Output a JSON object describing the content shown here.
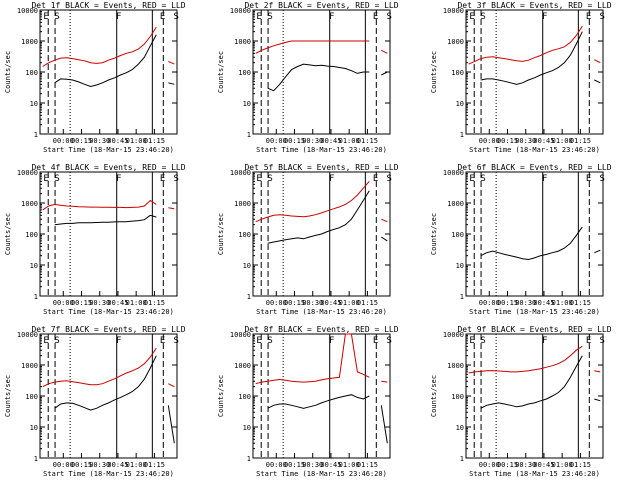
{
  "colors": {
    "events": "#000000",
    "lld": "#cc0000",
    "axes": "#000000"
  },
  "chart_data": [
    {
      "type": "line",
      "title": "Det 1f BLACK = Events, RED = LLD",
      "xlabel": "Start Time (18-Mar-15 23:46:20)",
      "ylabel": "Counts/sec",
      "ylog": true,
      "ylim": [
        1,
        10000
      ],
      "ytick_labels": [
        "1",
        "10",
        "100",
        "1000",
        "10000"
      ],
      "xtick_labels": [
        "00:00",
        "00:15",
        "00:30",
        "00:45",
        "01:00",
        "01:15"
      ],
      "markers": [
        "E",
        "S",
        "F",
        "E",
        "S"
      ],
      "series": [
        {
          "values": [
            null,
            null,
            45,
            60,
            58,
            55,
            48,
            40,
            34,
            38,
            45,
            55,
            65,
            80,
            95,
            120,
            180,
            300,
            700,
            1600,
            null,
            45,
            40
          ]
        },
        {
          "values": [
            150,
            200,
            240,
            280,
            290,
            270,
            250,
            230,
            200,
            190,
            200,
            240,
            280,
            340,
            400,
            450,
            550,
            800,
            1400,
            2800,
            null,
            220,
            180
          ]
        }
      ]
    },
    {
      "type": "line",
      "title": "Det 2f BLACK = Events, RED = LLD",
      "xlabel": "Start Time (18-Mar-15 23:46:20)",
      "ylabel": "Counts/sec",
      "ylog": true,
      "ylim": [
        1,
        10000
      ],
      "ytick_labels": [
        "1",
        "10",
        "100",
        "1000",
        "10000"
      ],
      "xtick_labels": [
        "00:00",
        "00:15",
        "00:30",
        "00:45",
        "01:00",
        "01:15"
      ],
      "markers": [
        "E",
        "S",
        "F",
        "E",
        "S"
      ],
      "series": [
        {
          "values": [
            null,
            null,
            30,
            25,
            40,
            70,
            120,
            150,
            180,
            170,
            160,
            165,
            155,
            150,
            140,
            130,
            110,
            90,
            100,
            100,
            null,
            80,
            100
          ]
        },
        {
          "values": [
            400,
            500,
            600,
            700,
            800,
            900,
            1000,
            1000,
            1000,
            1000,
            1000,
            1000,
            1000,
            1000,
            1000,
            1000,
            1000,
            1000,
            1000,
            1000,
            null,
            500,
            400
          ]
        }
      ]
    },
    {
      "type": "line",
      "title": "Det 3f BLACK = Events, RED = LLD",
      "xlabel": "Start Time (18-Mar-15 23:46:20)",
      "ylabel": "Counts/sec",
      "ylog": true,
      "ylim": [
        1,
        10000
      ],
      "ytick_labels": [
        "1",
        "10",
        "100",
        "1000",
        "10000"
      ],
      "xtick_labels": [
        "00:00",
        "00:15",
        "00:30",
        "00:45",
        "01:00",
        "01:15"
      ],
      "markers": [
        "E",
        "S",
        "F",
        "E",
        "S"
      ],
      "series": [
        {
          "values": [
            null,
            null,
            55,
            60,
            60,
            55,
            50,
            45,
            40,
            45,
            55,
            65,
            80,
            95,
            110,
            140,
            200,
            350,
            800,
            2000,
            null,
            55,
            45
          ]
        },
        {
          "values": [
            180,
            220,
            270,
            300,
            310,
            290,
            270,
            250,
            230,
            220,
            240,
            290,
            340,
            420,
            500,
            560,
            650,
            900,
            1500,
            3000,
            null,
            250,
            200
          ]
        }
      ]
    },
    {
      "type": "line",
      "title": "Det 4f BLACK = Events, RED = LLD",
      "xlabel": "Start Time (18-Mar-15 23:46:20)",
      "ylabel": "Counts/sec",
      "ylog": true,
      "ylim": [
        1,
        10000
      ],
      "ytick_labels": [
        "1",
        "10",
        "100",
        "1000",
        "10000"
      ],
      "xtick_labels": [
        "00:00",
        "00:15",
        "00:30",
        "00:45",
        "01:00",
        "01:15"
      ],
      "markers": [
        "E",
        "S",
        "F",
        "E",
        "S"
      ],
      "series": [
        {
          "values": [
            null,
            null,
            200,
            210,
            220,
            220,
            230,
            230,
            230,
            235,
            240,
            240,
            245,
            250,
            250,
            260,
            270,
            290,
            400,
            350,
            null,
            300,
            null
          ]
        },
        {
          "values": [
            600,
            800,
            900,
            850,
            800,
            780,
            760,
            750,
            740,
            740,
            730,
            730,
            720,
            720,
            710,
            720,
            740,
            800,
            1200,
            900,
            null,
            700,
            650
          ]
        }
      ]
    },
    {
      "type": "line",
      "title": "Det 5f BLACK = Events, RED = LLD",
      "xlabel": "Start Time (18-Mar-15 23:46:20)",
      "ylabel": "Counts/sec",
      "ylog": true,
      "ylim": [
        1,
        10000
      ],
      "ytick_labels": [
        "1",
        "10",
        "100",
        "1000",
        "10000"
      ],
      "xtick_labels": [
        "00:00",
        "00:15",
        "00:30",
        "00:45",
        "01:00",
        "01:15"
      ],
      "markers": [
        "E",
        "S",
        "F",
        "E",
        "S"
      ],
      "series": [
        {
          "values": [
            null,
            null,
            50,
            55,
            60,
            65,
            70,
            75,
            70,
            80,
            90,
            100,
            120,
            140,
            160,
            200,
            300,
            600,
            1200,
            2500,
            null,
            80,
            60
          ]
        },
        {
          "values": [
            250,
            300,
            350,
            400,
            420,
            400,
            380,
            370,
            360,
            380,
            420,
            480,
            560,
            650,
            750,
            900,
            1200,
            1800,
            3000,
            5000,
            null,
            300,
            250
          ]
        }
      ]
    },
    {
      "type": "line",
      "title": "Det 6f BLACK = Events, RED = LLD",
      "xlabel": "Start Time (18-Mar-15 23:46:20)",
      "ylabel": "Counts/sec",
      "ylog": true,
      "ylim": [
        1,
        10000
      ],
      "ytick_labels": [
        "1",
        "10",
        "100",
        "1000",
        "10000"
      ],
      "xtick_labels": [
        "00:00",
        "00:15",
        "00:30",
        "00:45",
        "01:00",
        "01:15"
      ],
      "markers": [
        "E",
        "S",
        "F",
        "E",
        "S"
      ],
      "series": [
        {
          "values": [
            null,
            null,
            20,
            25,
            28,
            25,
            22,
            20,
            18,
            16,
            15,
            17,
            20,
            22,
            25,
            28,
            35,
            50,
            90,
            170,
            null,
            25,
            30
          ]
        }
      ]
    },
    {
      "type": "line",
      "title": "Det 7f BLACK = Events, RED = LLD",
      "xlabel": "Start Time (18-Mar-15 23:46:20)",
      "ylabel": "Counts/sec",
      "ylog": true,
      "ylim": [
        1,
        10000
      ],
      "ytick_labels": [
        "1",
        "10",
        "100",
        "1000",
        "10000"
      ],
      "xtick_labels": [
        "00:00",
        "00:15",
        "00:30",
        "00:45",
        "01:00",
        "01:15"
      ],
      "markers": [
        "E",
        "S",
        "F",
        "E",
        "S"
      ],
      "series": [
        {
          "values": [
            null,
            null,
            40,
            55,
            60,
            58,
            50,
            42,
            35,
            40,
            50,
            60,
            75,
            90,
            110,
            140,
            200,
            350,
            800,
            2000,
            null,
            50,
            3
          ]
        },
        {
          "values": [
            200,
            250,
            280,
            300,
            310,
            290,
            270,
            250,
            230,
            230,
            250,
            300,
            360,
            450,
            550,
            650,
            800,
            1100,
            1800,
            3500,
            null,
            250,
            200
          ]
        }
      ]
    },
    {
      "type": "line",
      "title": "Det 8f BLACK = Events, RED = LLD",
      "xlabel": "Start Time (18-Mar-15 23:46:20)",
      "ylabel": "Counts/sec",
      "ylog": true,
      "ylim": [
        1,
        10000
      ],
      "ytick_labels": [
        "1",
        "10",
        "100",
        "1000",
        "10000"
      ],
      "xtick_labels": [
        "00:00",
        "00:15",
        "00:30",
        "00:45",
        "01:00",
        "01:15"
      ],
      "markers": [
        "E",
        "S",
        "F",
        "E",
        "S"
      ],
      "series": [
        {
          "values": [
            null,
            null,
            40,
            50,
            55,
            55,
            50,
            45,
            40,
            45,
            50,
            60,
            70,
            80,
            90,
            100,
            110,
            90,
            80,
            100,
            null,
            50,
            3
          ]
        },
        {
          "values": [
            250,
            280,
            300,
            320,
            340,
            320,
            300,
            290,
            280,
            290,
            300,
            330,
            360,
            380,
            400,
            10000,
            10000,
            600,
            500,
            400,
            null,
            300,
            280
          ]
        }
      ]
    },
    {
      "type": "line",
      "title": "Det 9f BLACK = Events, RED = LLD",
      "xlabel": "Start Time (18-Mar-15 23:46:20)",
      "ylabel": "Counts/sec",
      "ylog": true,
      "ylim": [
        1,
        10000
      ],
      "ytick_labels": [
        "1",
        "10",
        "100",
        "1000",
        "10000"
      ],
      "xtick_labels": [
        "00:00",
        "00:15",
        "00:30",
        "00:45",
        "01:00",
        "01:15"
      ],
      "markers": [
        "E",
        "S",
        "F",
        "E",
        "S"
      ],
      "series": [
        {
          "values": [
            null,
            null,
            40,
            50,
            55,
            60,
            55,
            50,
            45,
            48,
            55,
            60,
            70,
            80,
            100,
            130,
            200,
            400,
            900,
            2000,
            null,
            80,
            70
          ]
        },
        {
          "values": [
            550,
            600,
            620,
            650,
            660,
            640,
            620,
            600,
            600,
            620,
            650,
            700,
            760,
            850,
            950,
            1100,
            1400,
            2000,
            3000,
            4000,
            null,
            650,
            600
          ]
        }
      ]
    }
  ]
}
